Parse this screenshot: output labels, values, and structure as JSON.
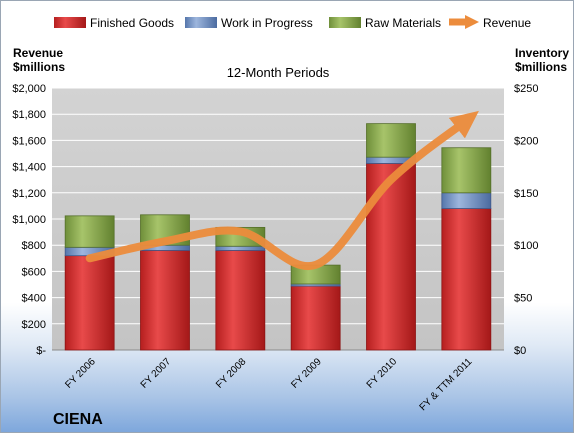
{
  "company": "CIENA",
  "chart_data": {
    "type": "bar",
    "subtype": "stacked-bar-with-line",
    "title": "12-Month Periods",
    "categories": [
      "FY 2006",
      "FY 2007",
      "FY 2008",
      "FY 2009",
      "FY 2010",
      "FY & TTM 2011"
    ],
    "series": [
      {
        "name": "Finished Goods",
        "axis": "right",
        "color": "#d42a2a",
        "values": [
          90,
          95,
          95,
          61,
          178,
          135
        ]
      },
      {
        "name": "Work in Progress",
        "axis": "right",
        "color": "#6f90c4",
        "values": [
          8,
          5,
          4,
          2,
          6,
          15
        ]
      },
      {
        "name": "Raw Materials",
        "axis": "right",
        "color": "#8cae4f",
        "values": [
          30,
          29,
          18,
          18,
          32,
          43
        ]
      },
      {
        "name": "Revenue",
        "axis": "left",
        "type": "line",
        "color": "#ec8c3c",
        "values": [
          700,
          830,
          905,
          650,
          1300,
          1750
        ]
      }
    ],
    "y_left": {
      "label_line1": "Revenue",
      "label_line2": "$millions",
      "range": [
        0,
        2000
      ],
      "ticks": [
        0,
        200,
        400,
        600,
        800,
        1000,
        1200,
        1400,
        1600,
        1800,
        2000
      ],
      "tick_labels": [
        "$-",
        "$200",
        "$400",
        "$600",
        "$800",
        "$1,000",
        "$1,200",
        "$1,400",
        "$1,600",
        "$1,800",
        "$2,000"
      ]
    },
    "y_right": {
      "label_line1": "Inventory",
      "label_line2": "$millions",
      "range": [
        0,
        250
      ],
      "ticks": [
        0,
        50,
        100,
        150,
        200,
        250
      ],
      "tick_labels": [
        "$0",
        "$50",
        "$100",
        "$150",
        "$200",
        "$250"
      ]
    },
    "grid": true,
    "legend_position": "top"
  }
}
